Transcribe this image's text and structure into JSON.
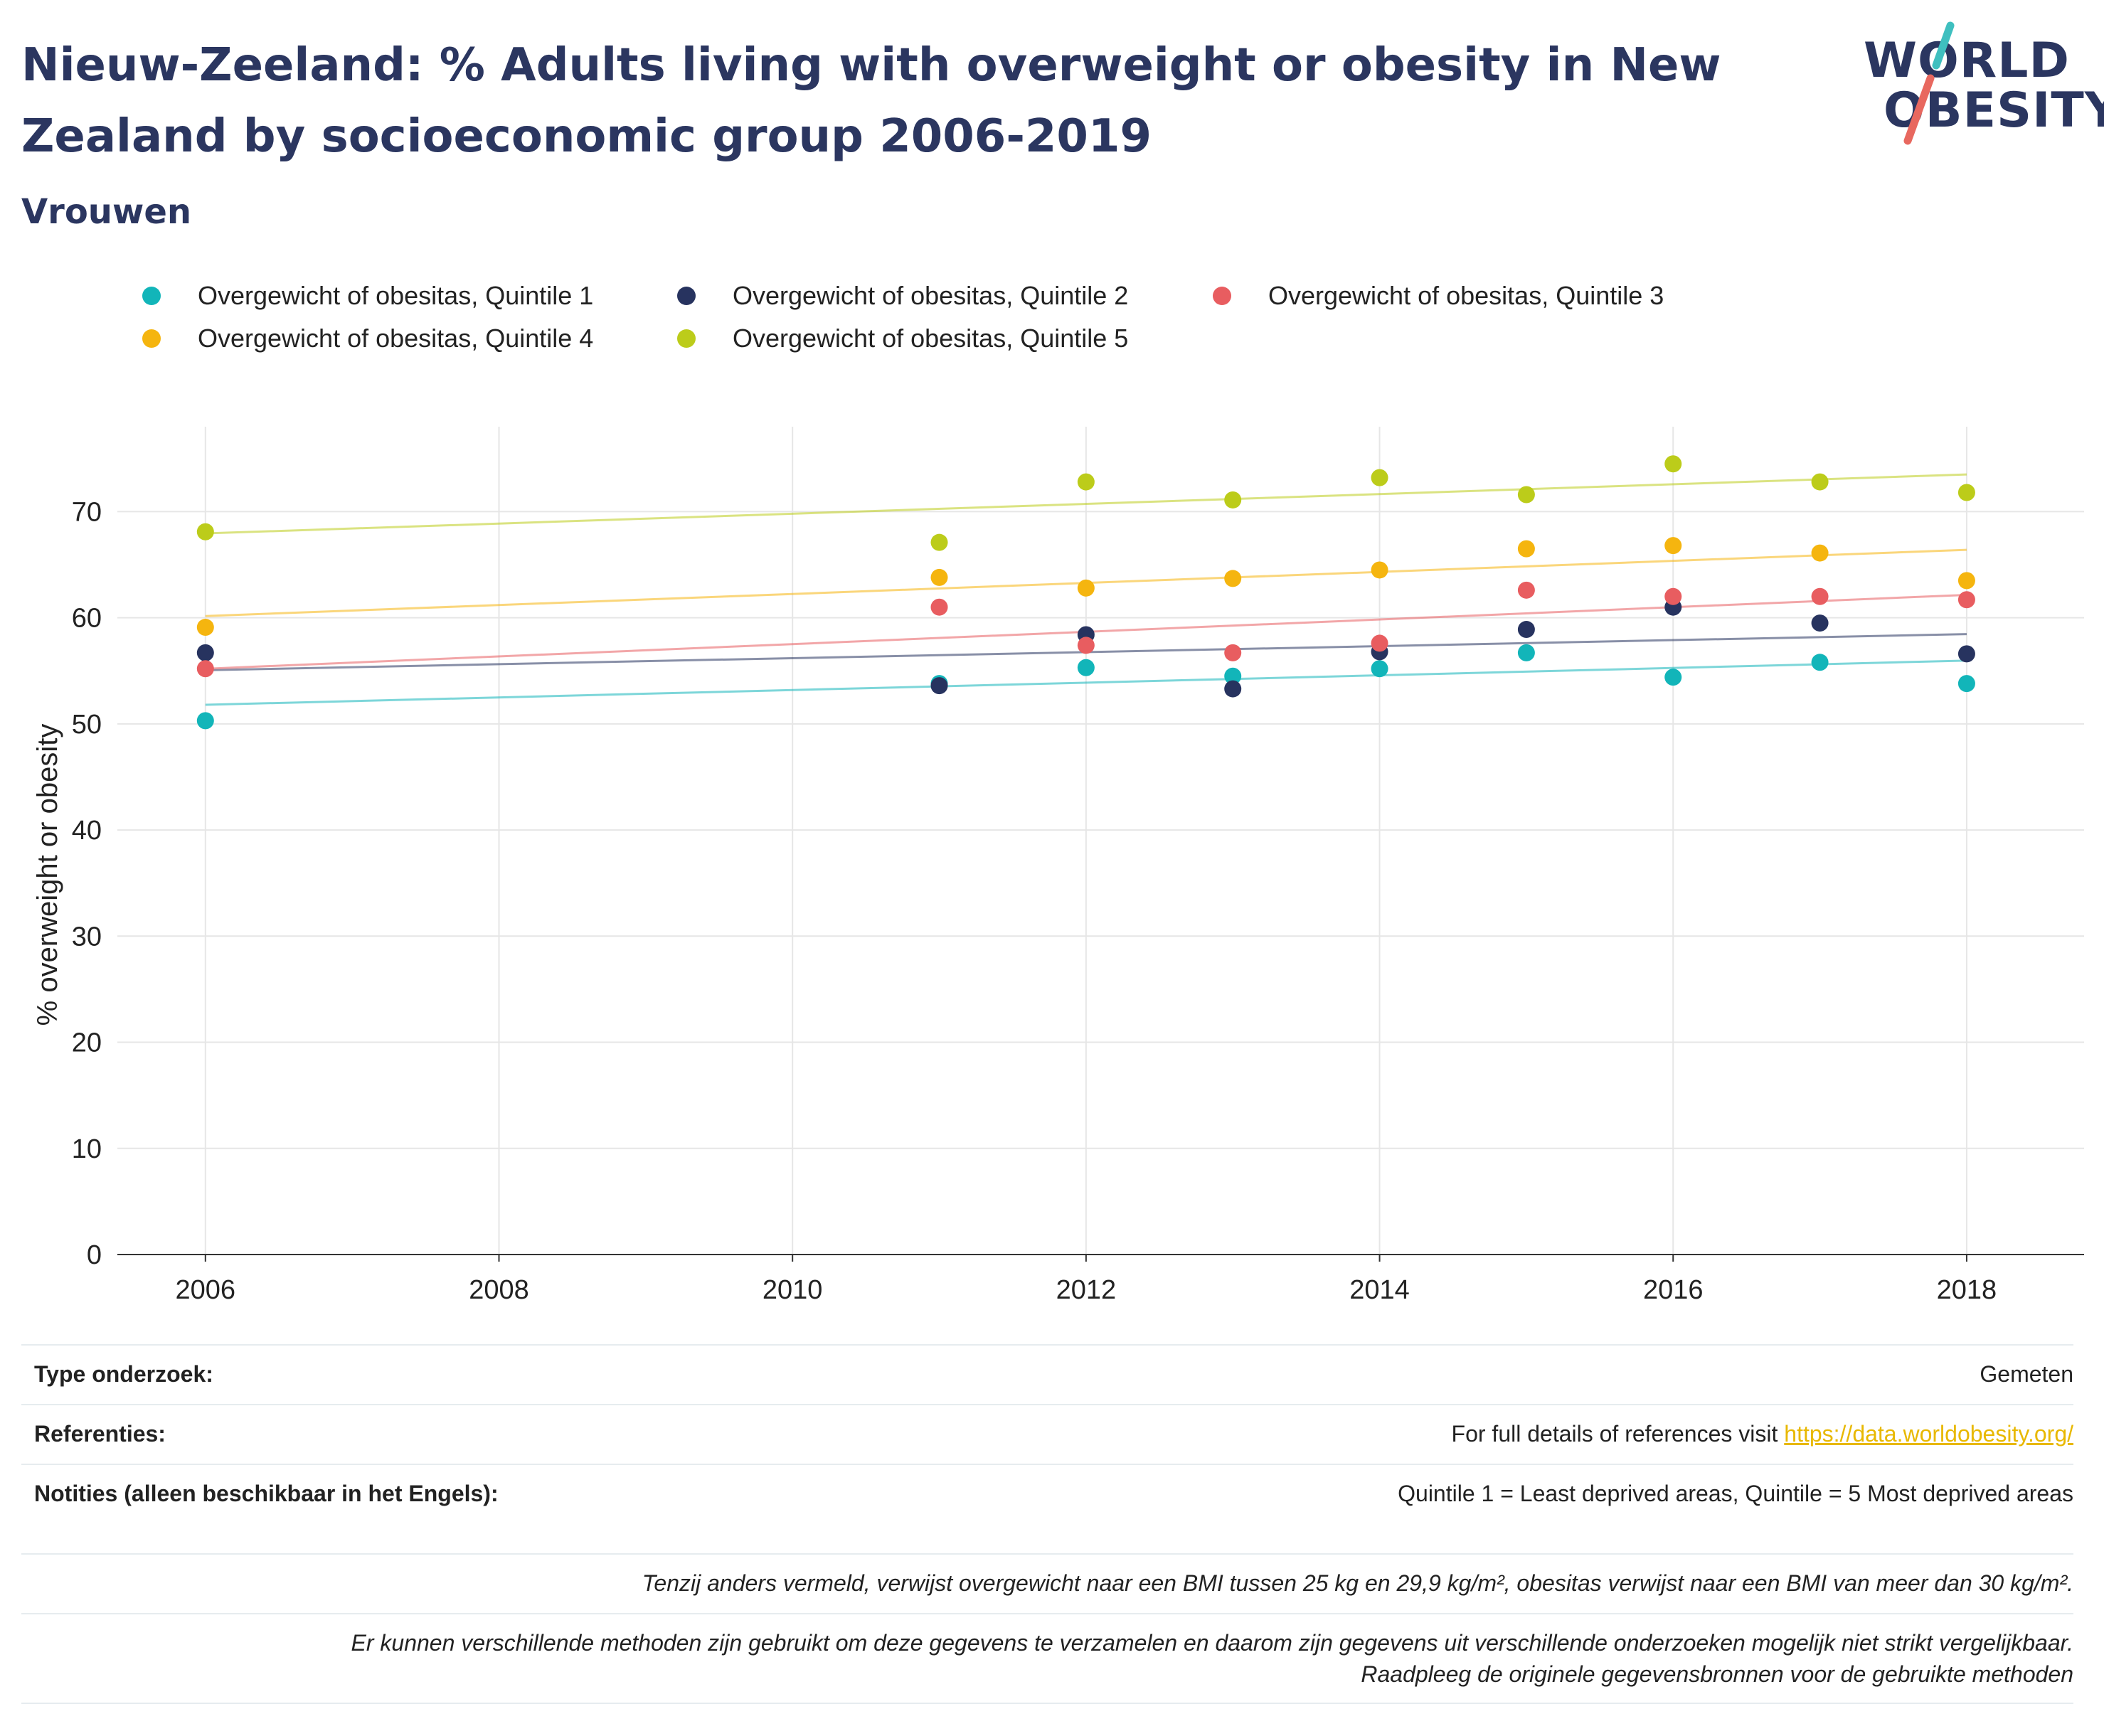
{
  "title": "Nieuw-Zeeland: % Adults living with overweight or obesity in New Zealand by socioeconomic group 2006-2019",
  "subtitle": "Vrouwen",
  "logo": {
    "line1": "WORLD",
    "line2": "OBESITY",
    "accent_teal": "#3fbfbf",
    "accent_red": "#e8685f"
  },
  "legend": [
    {
      "label": "Overgewicht of obesitas, Quintile 1",
      "color": "#12b5b9"
    },
    {
      "label": "Overgewicht of obesitas, Quintile 2",
      "color": "#27335f"
    },
    {
      "label": "Overgewicht of obesitas, Quintile 3",
      "color": "#e85d60"
    },
    {
      "label": "Overgewicht of obesitas, Quintile 4",
      "color": "#f5b50f"
    },
    {
      "label": "Overgewicht of obesitas, Quintile 5",
      "color": "#bccc1a"
    }
  ],
  "chart_data": {
    "type": "scatter",
    "title": "Nieuw-Zeeland: % Adults living with overweight or obesity in New Zealand by socioeconomic group 2006-2019",
    "subtitle": "Vrouwen",
    "xlabel": "",
    "ylabel": "% overweight or obesity",
    "xlim": [
      2005.4,
      2018.8
    ],
    "ylim": [
      0,
      78
    ],
    "x_ticks": [
      2006,
      2008,
      2010,
      2012,
      2014,
      2016,
      2018
    ],
    "y_ticks": [
      0,
      10,
      20,
      30,
      40,
      50,
      60,
      70
    ],
    "grid": true,
    "legend_position": "top",
    "trendlines": true,
    "series": [
      {
        "name": "Overgewicht of obesitas, Quintile 1",
        "color": "#12b5b9",
        "x": [
          2006,
          2011,
          2012,
          2013,
          2014,
          2015,
          2016,
          2017,
          2018
        ],
        "y": [
          50.3,
          53.8,
          55.3,
          54.5,
          55.2,
          56.7,
          54.4,
          55.8,
          53.8
        ]
      },
      {
        "name": "Overgewicht of obesitas, Quintile 2",
        "color": "#27335f",
        "x": [
          2006,
          2011,
          2012,
          2013,
          2014,
          2015,
          2016,
          2017,
          2018
        ],
        "y": [
          56.7,
          53.6,
          58.4,
          53.3,
          56.8,
          58.9,
          61.0,
          59.5,
          56.6
        ]
      },
      {
        "name": "Overgewicht of obesitas, Quintile 3",
        "color": "#e85d60",
        "x": [
          2006,
          2011,
          2012,
          2013,
          2014,
          2015,
          2016,
          2017,
          2018
        ],
        "y": [
          55.2,
          61.0,
          57.4,
          56.7,
          57.6,
          62.6,
          62.0,
          62.0,
          61.7
        ]
      },
      {
        "name": "Overgewicht of obesitas, Quintile 4",
        "color": "#f5b50f",
        "x": [
          2006,
          2011,
          2012,
          2013,
          2014,
          2015,
          2016,
          2017,
          2018
        ],
        "y": [
          59.1,
          63.8,
          62.8,
          63.7,
          64.5,
          66.5,
          66.8,
          66.1,
          63.5
        ]
      },
      {
        "name": "Overgewicht of obesitas, Quintile 5",
        "color": "#bccc1a",
        "x": [
          2006,
          2011,
          2012,
          2013,
          2014,
          2015,
          2016,
          2017,
          2018
        ],
        "y": [
          68.1,
          67.1,
          72.8,
          71.1,
          73.2,
          71.6,
          74.5,
          72.8,
          71.8
        ]
      }
    ]
  },
  "info": {
    "type_label": "Type onderzoek:",
    "type_value": "Gemeten",
    "ref_label": "Referenties:",
    "ref_prefix": "For full details of references visit ",
    "ref_link": "https://data.worldobesity.org/",
    "notes_label": "Notities (alleen beschikbaar in het Engels):",
    "notes_value": "Quintile 1 = Least deprived areas, Quintile = 5 Most deprived areas",
    "bmi_note": "Tenzij anders vermeld, verwijst overgewicht naar een BMI tussen 25 kg en 29,9 kg/m², obesitas verwijst naar een BMI van meer dan 30 kg/m².",
    "method_note": "Er kunnen verschillende methoden zijn gebruikt om deze gegevens te verzamelen en daarom zijn gegevens uit verschillende onderzoeken mogelijk niet strikt vergelijkbaar. Raadpleeg de originele gegevensbronnen voor de gebruikte methoden"
  }
}
